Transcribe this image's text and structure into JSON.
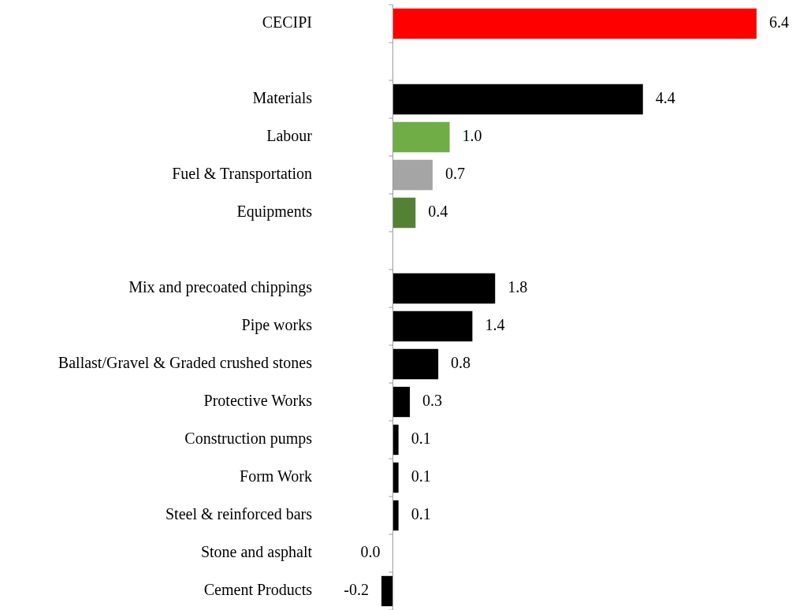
{
  "chart_data": {
    "type": "bar",
    "orientation": "horizontal",
    "categories": [
      "CECIPI",
      null,
      "Materials",
      "Labour",
      "Fuel & Transportation",
      "Equipments",
      null,
      "Mix and precoated chippings",
      "Pipe works",
      "Ballast/Gravel & Graded crushed stones",
      "Protective Works",
      "Construction pumps",
      "Form Work",
      "Steel & reinforced bars",
      "Stone and asphalt",
      "Cement Products"
    ],
    "values": [
      6.4,
      null,
      4.4,
      1.0,
      0.7,
      0.4,
      null,
      1.8,
      1.4,
      0.8,
      0.3,
      0.1,
      0.1,
      0.1,
      0.0,
      -0.2
    ],
    "colors": [
      "#ff0000",
      "#000000",
      "#000000",
      "#70ad47",
      "#a5a5a5",
      "#548235",
      "#000000",
      "#000000",
      "#000000",
      "#000000",
      "#000000",
      "#000000",
      "#000000",
      "#000000",
      "#000000",
      "#000000"
    ],
    "value_labels": [
      "6.4",
      null,
      "4.4",
      "1.0",
      "0.7",
      "0.4",
      null,
      "1.8",
      "1.4",
      "0.8",
      "0.3",
      "0.1",
      "0.1",
      "0.1",
      "0.0",
      "-0.2"
    ]
  }
}
